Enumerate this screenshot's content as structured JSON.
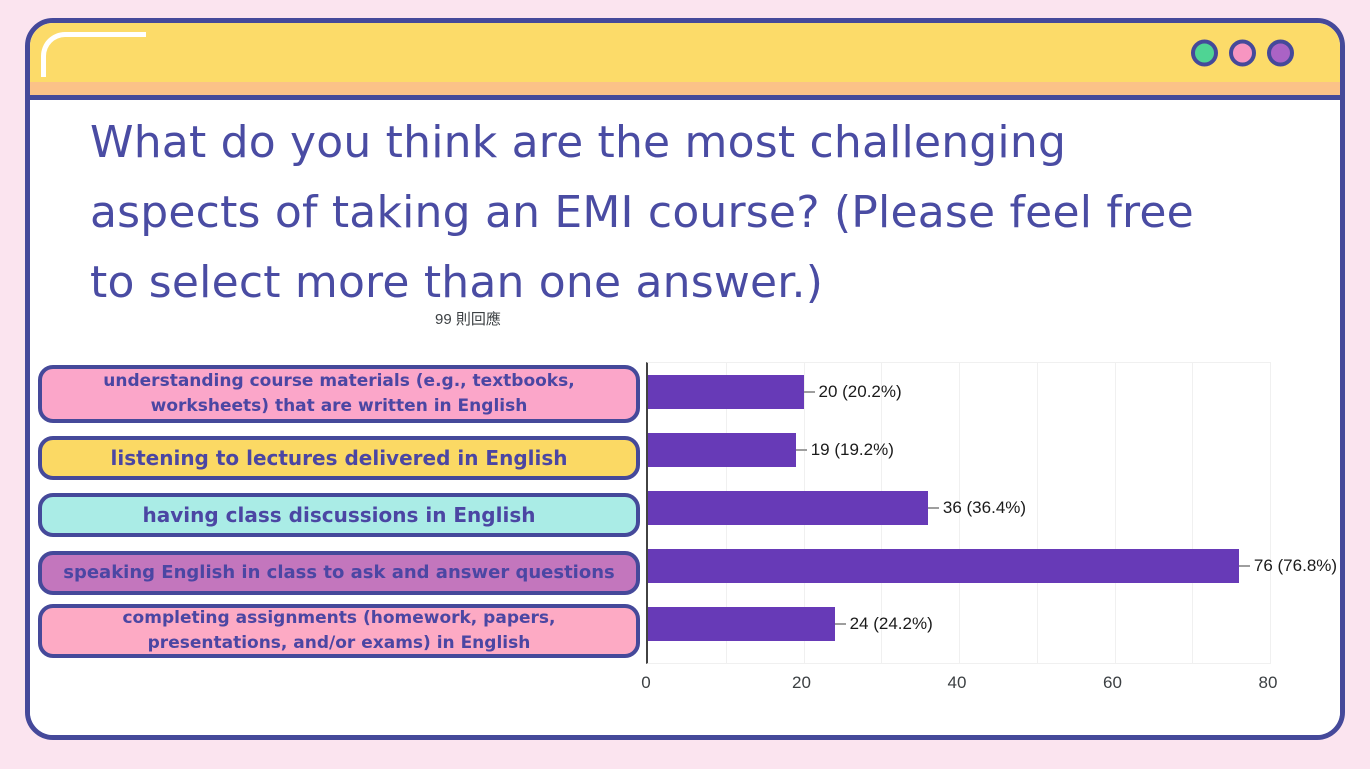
{
  "window": {
    "buttons": [
      {
        "name": "green",
        "color": "#4fd494"
      },
      {
        "name": "pink",
        "color": "#f795c1"
      },
      {
        "name": "purple",
        "color": "#aa63c5"
      }
    ]
  },
  "question": "What do you think are the most challenging aspects of taking an EMI course? (Please feel free to select more than one answer.)",
  "responses_label": "99 則回應",
  "answers": [
    {
      "label": "understanding course materials (e.g., textbooks, worksheets) that are written in English",
      "bg": "#fba6c9"
    },
    {
      "label": "listening to lectures delivered in English",
      "bg": "#fbd964"
    },
    {
      "label": "having class discussions in English",
      "bg": "#aaece6"
    },
    {
      "label": "speaking English in class to ask and answer questions",
      "bg": "#c376bd"
    },
    {
      "label": "completing assignments (homework, papers, presentations, and/or exams) in English",
      "bg": "#fdaac4"
    }
  ],
  "chart_data": {
    "type": "bar",
    "orientation": "horizontal",
    "title": "What do you think are the most challenging aspects of taking an EMI course? (Please feel free to select more than one answer.)",
    "annotation": "99 則回應",
    "categories": [
      "understanding course materials (e.g., textbooks, worksheets) that are written in English",
      "listening to lectures delivered in English",
      "having class discussions in English",
      "speaking English in class to ask and answer questions",
      "completing assignments (homework, papers, presentations, and/or exams) in English"
    ],
    "values": [
      20,
      19,
      36,
      76,
      24
    ],
    "value_labels": [
      "20 (20.2%)",
      "19 (19.2%)",
      "36 (36.4%)",
      "76 (76.8%)",
      "24 (24.2%)"
    ],
    "xlim": [
      0,
      80
    ],
    "xticks": [
      0,
      20,
      40,
      60,
      80
    ],
    "gridline_interval": 10,
    "grid": true,
    "legend": "none",
    "bar_color": "#673ab7"
  },
  "colors": {
    "page_background": "#fbe4ef",
    "window_border": "#45499a",
    "titlebar": "#fcdb69",
    "titlebar_strip": "#fbc288",
    "question_text": "#4a4ca3",
    "answer_text": "#4b46a3",
    "bar": "#673ab7"
  }
}
